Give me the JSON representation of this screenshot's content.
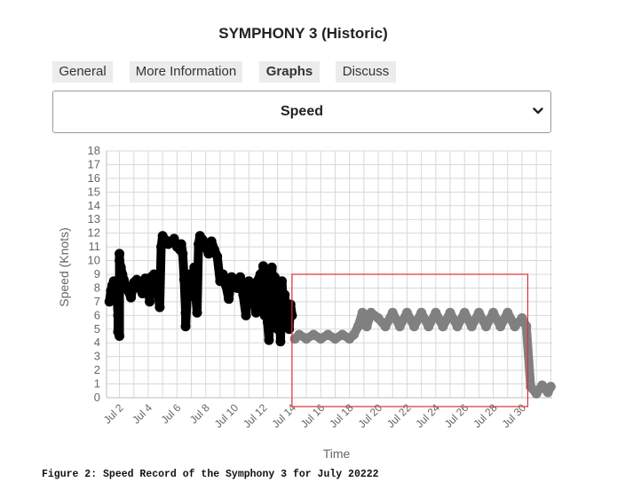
{
  "page_title": "SYMPHONY 3 (Historic)",
  "tabs": [
    {
      "label": "General",
      "active": false
    },
    {
      "label": "More Information",
      "active": false
    },
    {
      "label": "Graphs",
      "active": true
    },
    {
      "label": "Discuss",
      "active": false
    }
  ],
  "graph_select": {
    "selected": "Speed",
    "icon": "chevron-down-icon"
  },
  "caption": "Figure 2: Speed Record of the Symphony 3 for July 20222",
  "chart_data": {
    "type": "scatter",
    "title": "",
    "xlabel": "Time",
    "ylabel": "Speed (Knots)",
    "x_ticks": [
      "Jul 2",
      "Jul 4",
      "Jul 6",
      "Jul 8",
      "Jul 10",
      "Jul 12",
      "Jul 14",
      "Jul 16",
      "Jul 18",
      "Jul 20",
      "Jul 22",
      "Jul 24",
      "Jul 26",
      "Jul 28",
      "Jul 30"
    ],
    "x_tick_days": [
      2,
      4,
      6,
      8,
      10,
      12,
      14,
      16,
      18,
      20,
      22,
      24,
      26,
      28,
      30
    ],
    "xlim": [
      1.1,
      32.1
    ],
    "ylim": [
      0,
      18
    ],
    "y_ticks": [
      0,
      1,
      2,
      3,
      4,
      5,
      6,
      7,
      8,
      9,
      10,
      11,
      12,
      13,
      14,
      15,
      16,
      17,
      18
    ],
    "grid": true,
    "colors": {
      "series_1": "#000000",
      "series_2": "#808080",
      "highlight_box": "#e03030",
      "grid": "#d8d8d8"
    },
    "highlight_box": {
      "x_range": [
        14.0,
        30.4
      ],
      "y_range": [
        0,
        9
      ]
    },
    "series": [
      {
        "color": "#000000",
        "points": [
          [
            1.3,
            7.0
          ],
          [
            1.4,
            7.8
          ],
          [
            1.5,
            8.2
          ],
          [
            1.6,
            8.5
          ],
          [
            1.7,
            7.6
          ],
          [
            1.8,
            8.0
          ],
          [
            1.9,
            6.0
          ],
          [
            1.9,
            4.8
          ],
          [
            2.0,
            4.5
          ],
          [
            2.0,
            10.5
          ],
          [
            2.0,
            10.0
          ],
          [
            2.1,
            9.5
          ],
          [
            2.2,
            9.0
          ],
          [
            2.3,
            8.6
          ],
          [
            2.4,
            8.2
          ],
          [
            2.6,
            7.8
          ],
          [
            2.8,
            7.3
          ],
          [
            3.0,
            8.4
          ],
          [
            3.2,
            8.6
          ],
          [
            3.4,
            8.0
          ],
          [
            3.6,
            7.6
          ],
          [
            3.8,
            8.7
          ],
          [
            4.0,
            8.2
          ],
          [
            4.1,
            7.0
          ],
          [
            4.2,
            8.8
          ],
          [
            4.4,
            9.0
          ],
          [
            4.6,
            8.5
          ],
          [
            4.8,
            6.6
          ],
          [
            4.9,
            11.0
          ],
          [
            5.0,
            11.8
          ],
          [
            5.2,
            11.5
          ],
          [
            5.4,
            11.2
          ],
          [
            5.6,
            11.4
          ],
          [
            5.8,
            11.6
          ],
          [
            6.0,
            11.0
          ],
          [
            6.2,
            10.8
          ],
          [
            6.3,
            11.2
          ],
          [
            6.4,
            10.5
          ],
          [
            6.5,
            8.6
          ],
          [
            6.6,
            6.2
          ],
          [
            6.6,
            5.2
          ],
          [
            6.7,
            7.2
          ],
          [
            6.8,
            8.5
          ],
          [
            6.9,
            9.0
          ],
          [
            7.0,
            8.6
          ],
          [
            7.1,
            8.0
          ],
          [
            7.2,
            9.5
          ],
          [
            7.3,
            7.5
          ],
          [
            7.4,
            6.2
          ],
          [
            7.5,
            11.2
          ],
          [
            7.6,
            11.8
          ],
          [
            7.8,
            11.5
          ],
          [
            8.0,
            11.0
          ],
          [
            8.2,
            10.5
          ],
          [
            8.4,
            11.4
          ],
          [
            8.6,
            10.8
          ],
          [
            8.8,
            10.3
          ],
          [
            9.0,
            8.5
          ],
          [
            9.2,
            9.0
          ],
          [
            9.4,
            8.2
          ],
          [
            9.6,
            7.2
          ],
          [
            9.8,
            8.8
          ],
          [
            10.0,
            8.4
          ],
          [
            10.2,
            8.0
          ],
          [
            10.4,
            8.8
          ],
          [
            10.6,
            7.5
          ],
          [
            10.8,
            6.0
          ],
          [
            11.0,
            8.5
          ],
          [
            11.2,
            8.0
          ],
          [
            11.4,
            7.0
          ],
          [
            11.5,
            6.2
          ],
          [
            11.6,
            8.5
          ],
          [
            11.8,
            9.0
          ],
          [
            11.9,
            7.2
          ],
          [
            12.0,
            9.6
          ],
          [
            12.1,
            6.0
          ],
          [
            12.2,
            8.0
          ],
          [
            12.3,
            5.5
          ],
          [
            12.4,
            4.2
          ],
          [
            12.5,
            9.0
          ],
          [
            12.6,
            9.5
          ],
          [
            12.7,
            6.5
          ],
          [
            12.8,
            8.8
          ],
          [
            12.9,
            7.5
          ],
          [
            13.0,
            5.0
          ],
          [
            13.1,
            8.0
          ],
          [
            13.2,
            4.1
          ],
          [
            13.3,
            8.5
          ],
          [
            13.4,
            6.8
          ],
          [
            13.5,
            7.5
          ],
          [
            13.6,
            5.8
          ],
          [
            13.7,
            6.5
          ],
          [
            13.8,
            5.0
          ],
          [
            13.9,
            6.8
          ],
          [
            14.0,
            6.0
          ]
        ]
      },
      {
        "color": "#808080",
        "points": [
          [
            14.2,
            4.3
          ],
          [
            14.5,
            4.6
          ],
          [
            15.0,
            4.3
          ],
          [
            15.5,
            4.6
          ],
          [
            16.0,
            4.3
          ],
          [
            16.5,
            4.6
          ],
          [
            17.0,
            4.3
          ],
          [
            17.5,
            4.6
          ],
          [
            18.0,
            4.3
          ],
          [
            18.3,
            4.6
          ],
          [
            18.6,
            5.2
          ],
          [
            18.9,
            6.2
          ],
          [
            19.2,
            5.2
          ],
          [
            19.5,
            6.2
          ],
          [
            20.0,
            5.8
          ],
          [
            20.5,
            5.2
          ],
          [
            21.0,
            6.2
          ],
          [
            21.5,
            5.2
          ],
          [
            22.0,
            6.2
          ],
          [
            22.5,
            5.2
          ],
          [
            23.0,
            6.2
          ],
          [
            23.5,
            5.2
          ],
          [
            24.0,
            6.2
          ],
          [
            24.5,
            5.2
          ],
          [
            25.0,
            6.2
          ],
          [
            25.5,
            5.2
          ],
          [
            26.0,
            6.2
          ],
          [
            26.5,
            5.2
          ],
          [
            27.0,
            6.2
          ],
          [
            27.5,
            5.2
          ],
          [
            28.0,
            6.2
          ],
          [
            28.5,
            5.2
          ],
          [
            29.0,
            6.2
          ],
          [
            29.5,
            5.2
          ],
          [
            30.0,
            5.8
          ],
          [
            30.3,
            5.2
          ],
          [
            30.6,
            0.8
          ],
          [
            31.0,
            0.3
          ],
          [
            31.4,
            0.9
          ],
          [
            31.8,
            0.4
          ],
          [
            32.0,
            0.8
          ]
        ]
      }
    ]
  }
}
